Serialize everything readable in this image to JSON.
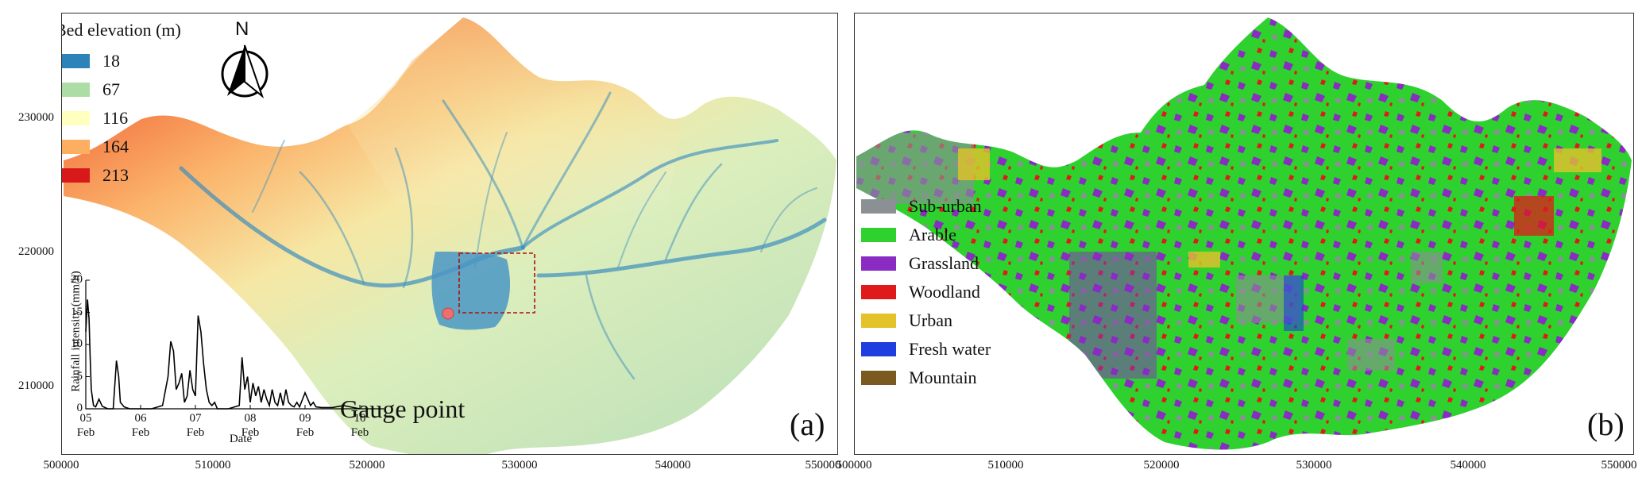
{
  "axes": {
    "y_ticks": [
      "230000",
      "220000",
      "210000"
    ],
    "x_ticks_a": [
      "500000",
      "510000",
      "520000",
      "530000",
      "540000",
      "550000"
    ],
    "x_ticks_b": [
      "500000",
      "510000",
      "520000",
      "530000",
      "540000",
      "550000"
    ]
  },
  "panel_a": {
    "label": "(a)",
    "legend_title": "Bed elevation (m)",
    "legend": [
      {
        "label": "18",
        "color": "#2b83ba"
      },
      {
        "label": "67",
        "color": "#abdda4"
      },
      {
        "label": "116",
        "color": "#ffffbf"
      },
      {
        "label": "164",
        "color": "#fdae61"
      },
      {
        "label": "213",
        "color": "#d7191c"
      }
    ],
    "north_label": "N",
    "gauge_label": "Gauge point",
    "inset": {
      "ylabel": "Rainfall intensity (mm/h)",
      "xlabel": "Date",
      "yticks": [
        "20",
        "15",
        "10",
        "5",
        "0"
      ],
      "xticks": [
        {
          "day": "05",
          "month": "Feb"
        },
        {
          "day": "06",
          "month": "Feb"
        },
        {
          "day": "07",
          "month": "Feb"
        },
        {
          "day": "08",
          "month": "Feb"
        },
        {
          "day": "09",
          "month": "Feb"
        },
        {
          "day": "10",
          "month": "Feb"
        }
      ]
    }
  },
  "panel_b": {
    "label": "(b)",
    "legend": [
      {
        "label": "Sub-urban",
        "color": "#8a9094"
      },
      {
        "label": "Arable",
        "color": "#2ed12e"
      },
      {
        "label": "Grassland",
        "color": "#8a2bc2"
      },
      {
        "label": "Woodland",
        "color": "#e01a1a"
      },
      {
        "label": "Urban",
        "color": "#e3c22a"
      },
      {
        "label": "Fresh water",
        "color": "#1f3ee0"
      },
      {
        "label": "Mountain",
        "color": "#7a5a20"
      }
    ]
  },
  "chart_data": {
    "type": "line",
    "xlabel": "Date",
    "ylabel": "Rainfall intensity (mm/h)",
    "ylim": [
      0,
      20
    ],
    "xlim": [
      0,
      5
    ],
    "x": [
      0,
      0.03,
      0.06,
      0.08,
      0.1,
      0.14,
      0.18,
      0.24,
      0.3,
      0.35,
      0.4,
      0.5,
      0.56,
      0.6,
      0.63,
      0.7,
      0.8,
      0.9,
      1.0,
      1.2,
      1.4,
      1.5,
      1.55,
      1.6,
      1.65,
      1.7,
      1.75,
      1.8,
      1.85,
      1.9,
      1.95,
      2.0,
      2.05,
      2.1,
      2.15,
      2.2,
      2.25,
      2.3,
      2.35,
      2.4,
      2.6,
      2.8,
      2.85,
      2.9,
      2.95,
      3.0,
      3.05,
      3.1,
      3.15,
      3.2,
      3.25,
      3.3,
      3.35,
      3.4,
      3.45,
      3.5,
      3.55,
      3.6,
      3.65,
      3.7,
      3.75,
      3.8,
      3.85,
      3.9,
      4.0,
      4.1,
      4.15,
      4.2,
      4.3,
      4.5,
      4.7,
      5.0
    ],
    "series": [
      {
        "values": [
          12,
          17,
          14,
          8,
          3,
          0.5,
          0.3,
          1.5,
          0.4,
          0.2,
          0,
          0,
          7.5,
          5,
          1,
          0.3,
          0,
          0,
          0,
          0,
          0.5,
          5,
          10.5,
          9,
          3,
          4,
          5.5,
          1,
          2,
          6,
          3,
          2,
          14.5,
          12,
          7,
          3,
          1,
          0.5,
          1,
          0,
          0,
          0.5,
          8,
          3,
          5,
          1,
          4,
          2,
          3.5,
          1,
          3,
          1.5,
          0.5,
          3,
          1,
          0.5,
          2.5,
          0.5,
          3,
          1,
          0.5,
          0.3,
          1,
          0.3,
          2.5,
          0.5,
          1,
          0.3,
          0.2,
          0.2,
          0.5,
          0
        ]
      }
    ]
  }
}
